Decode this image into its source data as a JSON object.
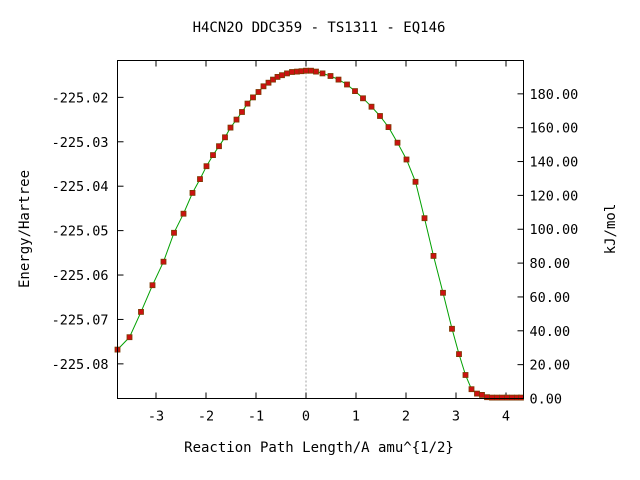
{
  "chart_data": {
    "type": "line",
    "title": "H4CN2O   DDC359 - TS1311 - EQ146",
    "xlabel": "Reaction Path Length/A amu^{1/2}",
    "ylabel": "Energy/Hartree",
    "y2label": "kJ/mol",
    "xlim": [
      -3.77,
      4.35
    ],
    "ylim": [
      -225.0878,
      -225.0117
    ],
    "y2lim": [
      0,
      199.7
    ],
    "x_ticks": [
      -3,
      -2,
      -1,
      0,
      1,
      2,
      3,
      4
    ],
    "x_tick_labels": [
      "-3",
      "-2",
      "-1",
      "0",
      "1",
      "2",
      "3",
      "4"
    ],
    "y_ticks": [
      -225.02,
      -225.03,
      -225.04,
      -225.05,
      -225.06,
      -225.07,
      -225.08
    ],
    "y_tick_labels": [
      "-225.02",
      "-225.03",
      "-225.04",
      "-225.05",
      "-225.06",
      "-225.07",
      "-225.08"
    ],
    "y2_ticks": [
      0,
      20,
      40,
      60,
      80,
      100,
      120,
      140,
      160,
      180
    ],
    "y2_tick_labels": [
      "0.00",
      "20.00",
      "40.00",
      "60.00",
      "80.00",
      "100.00",
      "120.00",
      "140.00",
      "160.00",
      "180.00"
    ],
    "reference_line_x": 0,
    "grid": false,
    "colors": {
      "line": "#00a000",
      "marker": "#cc1111",
      "marker_edge": "#7a3a00",
      "reference": "#a0a0a0"
    },
    "series": [
      {
        "x": [
          -3.77,
          -3.53,
          -3.3,
          -3.07,
          -2.85,
          -2.64,
          -2.45,
          -2.27,
          -2.12,
          -1.99,
          -1.86,
          -1.74,
          -1.62,
          -1.51,
          -1.39,
          -1.28,
          -1.17,
          -1.06,
          -0.95,
          -0.85,
          -0.75,
          -0.66,
          -0.57,
          -0.48,
          -0.38,
          -0.28,
          -0.18,
          -0.09,
          0.0,
          0.1,
          0.2,
          0.33,
          0.49,
          0.65,
          0.82,
          0.98,
          1.14,
          1.31,
          1.48,
          1.65,
          1.83,
          2.01,
          2.19,
          2.37,
          2.55,
          2.74,
          2.92,
          3.06,
          3.19,
          3.31,
          3.42,
          3.52,
          3.62,
          3.72,
          3.82,
          3.92,
          4.02,
          4.12,
          4.22,
          4.3
        ],
        "y": [
          -225.0768,
          -225.074,
          -225.0683,
          -225.0623,
          -225.057,
          -225.0505,
          -225.0462,
          -225.0415,
          -225.0384,
          -225.0355,
          -225.033,
          -225.031,
          -225.029,
          -225.0268,
          -225.025,
          -225.0233,
          -225.0214,
          -225.02,
          -225.0188,
          -225.0175,
          -225.0167,
          -225.016,
          -225.0154,
          -225.015,
          -225.0146,
          -225.0143,
          -225.0142,
          -225.0141,
          -225.014,
          -225.014,
          -225.0142,
          -225.0146,
          -225.0152,
          -225.016,
          -225.0171,
          -225.0186,
          -225.0202,
          -225.0221,
          -225.0242,
          -225.0267,
          -225.0302,
          -225.034,
          -225.039,
          -225.0472,
          -225.0557,
          -225.064,
          -225.0721,
          -225.0778,
          -225.0825,
          -225.0857,
          -225.0867,
          -225.087,
          -225.0875,
          -225.0876,
          -225.0876,
          -225.0876,
          -225.0876,
          -225.0876,
          -225.0876,
          -225.0876
        ]
      }
    ]
  }
}
